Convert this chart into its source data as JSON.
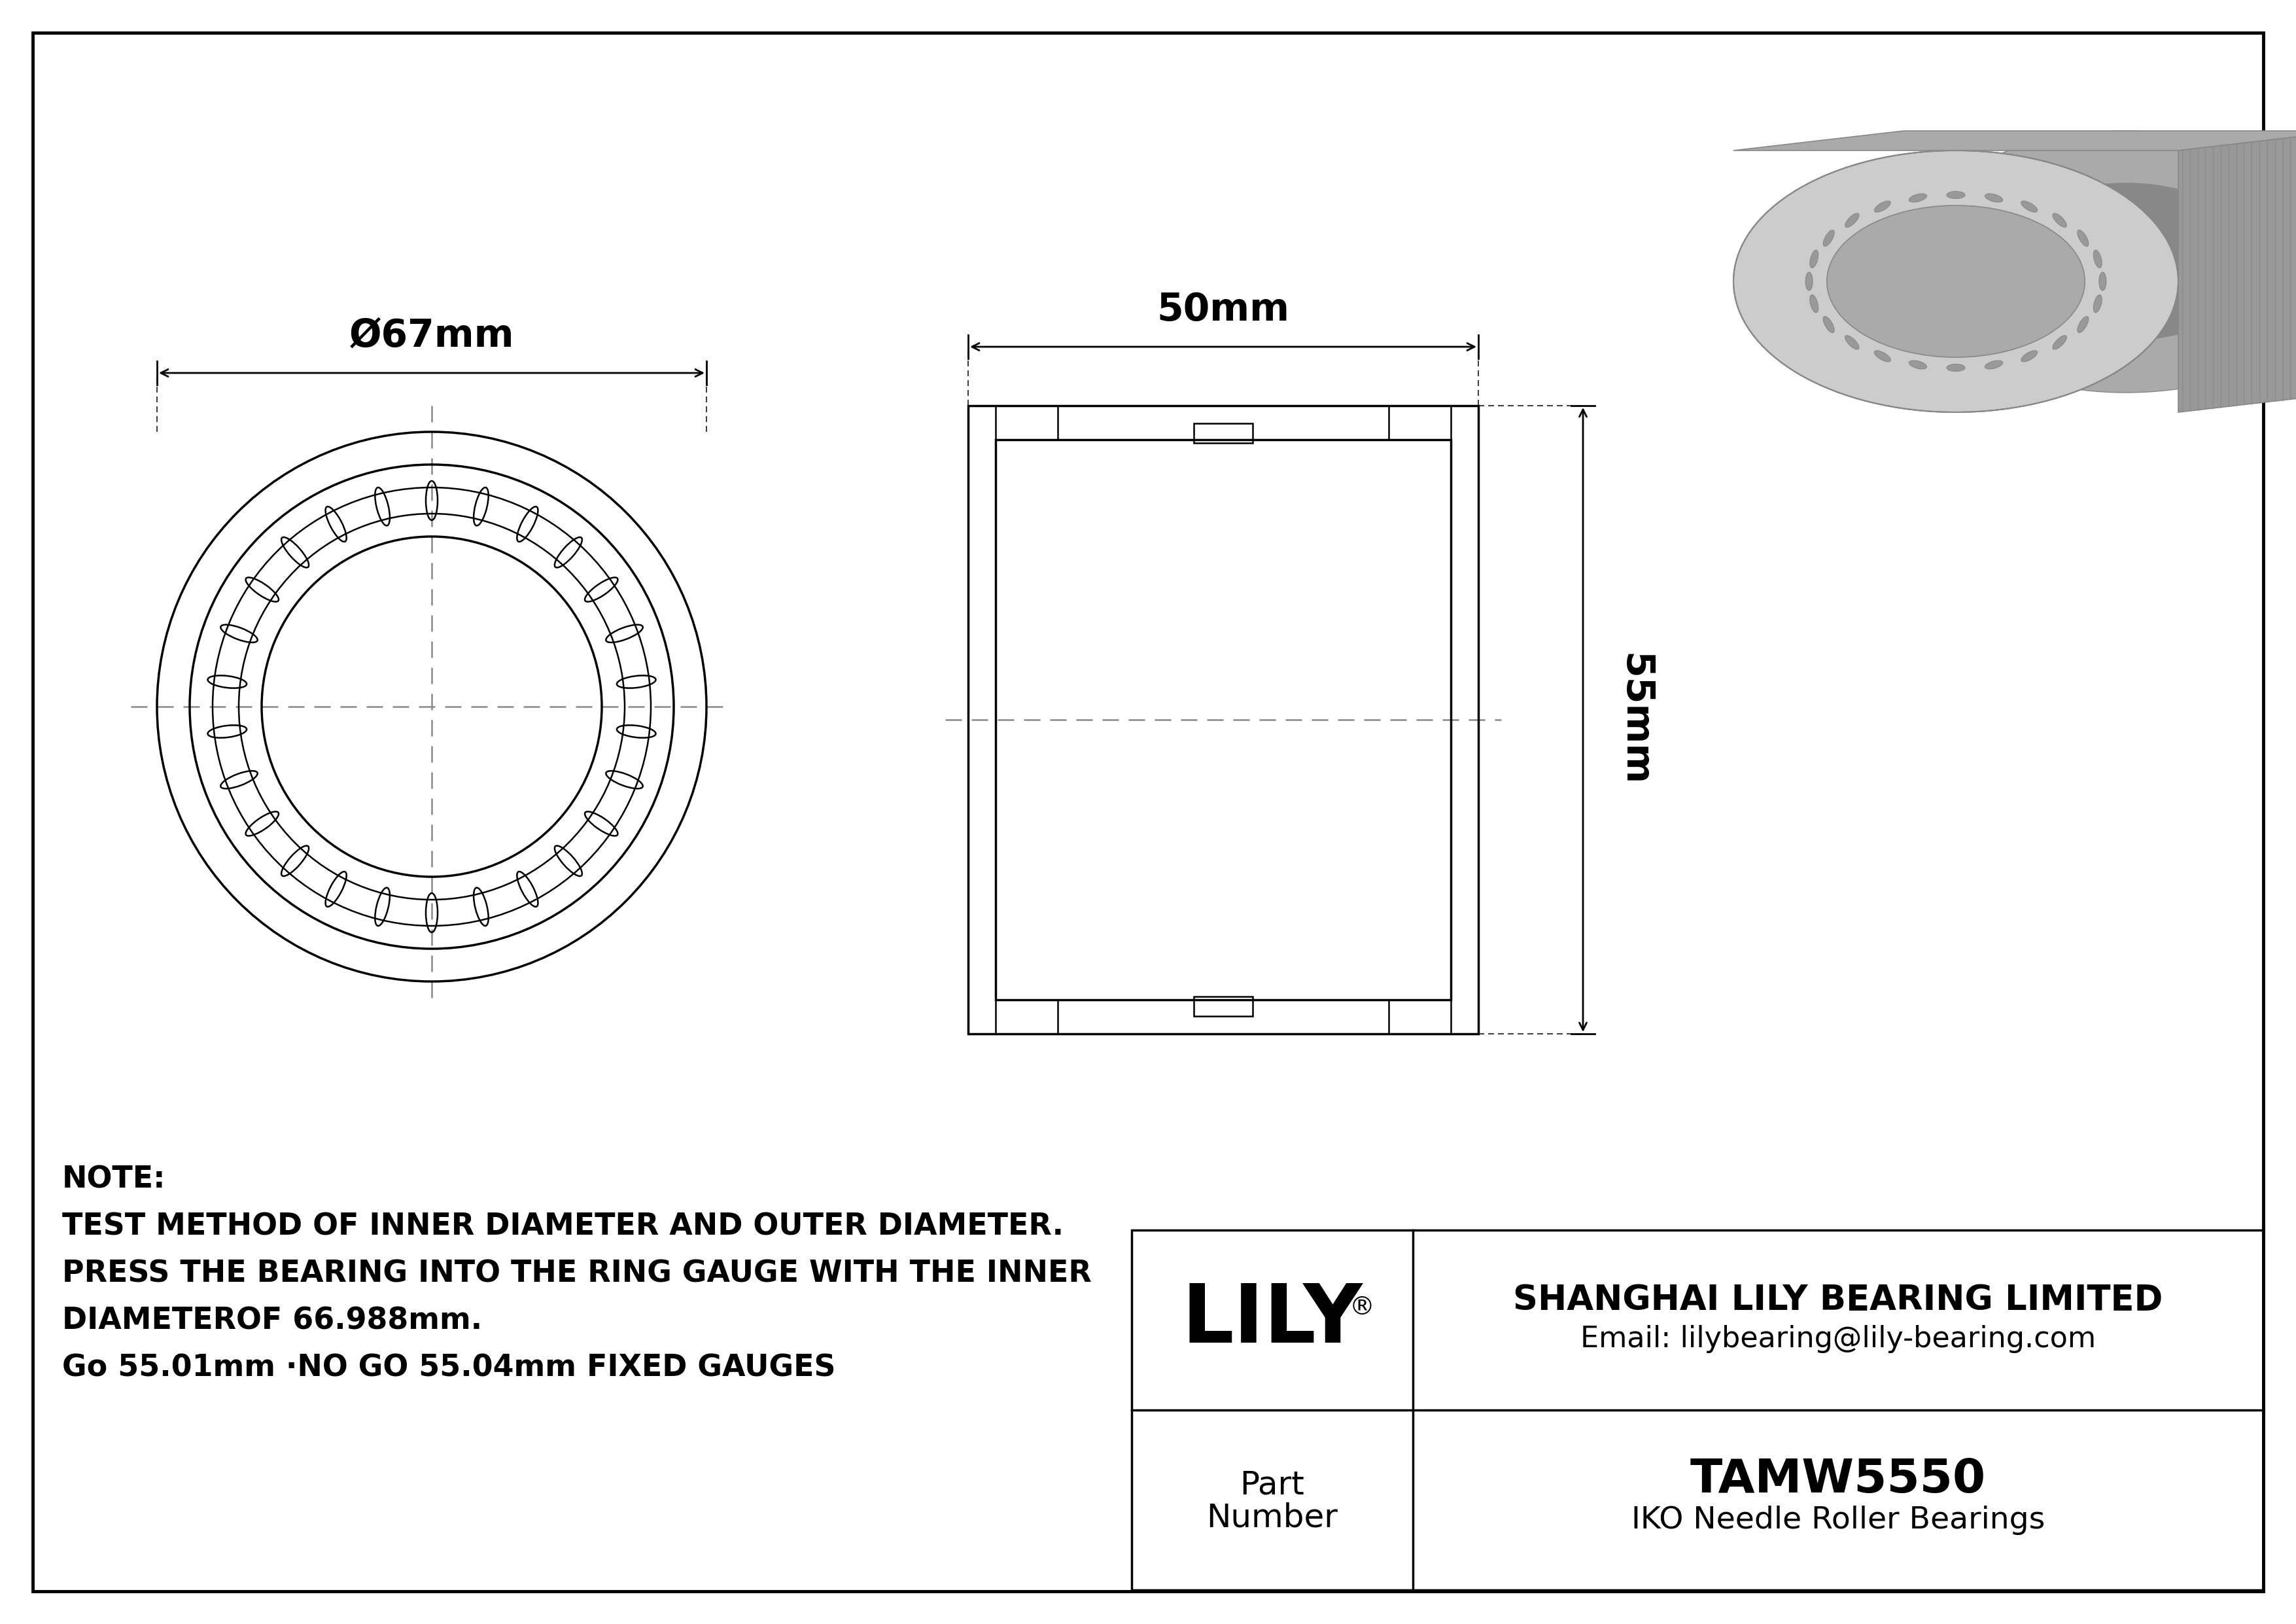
{
  "bg_color": "#ffffff",
  "line_color": "#000000",
  "outer_diameter_label": "Ø67mm",
  "width_label": "50mm",
  "height_label": "55mm",
  "company_name": "SHANGHAI LILY BEARING LIMITED",
  "company_email": "Email: lilybearing@lily-bearing.com",
  "brand": "LILY",
  "reg_symbol": "®",
  "part_number": "TAMW5550",
  "bearing_type": "IKO Needle Roller Bearings",
  "part_label_line1": "Part",
  "part_label_line2": "Number",
  "note_line1": "NOTE:",
  "note_line2": "TEST METHOD OF INNER DIAMETER AND OUTER DIAMETER.",
  "note_line3": "PRESS THE BEARING INTO THE RING GAUGE WITH THE INNER",
  "note_line4": "DIAMETEROF 66.988mm.",
  "note_line5": "Go 55.01mm ·NO GO 55.04mm FIXED GAUGES",
  "gray_body": "#aaaaaa",
  "gray_dark": "#888888",
  "gray_light": "#cccccc",
  "gray_mid": "#999999",
  "gray_stripe": "#777777"
}
